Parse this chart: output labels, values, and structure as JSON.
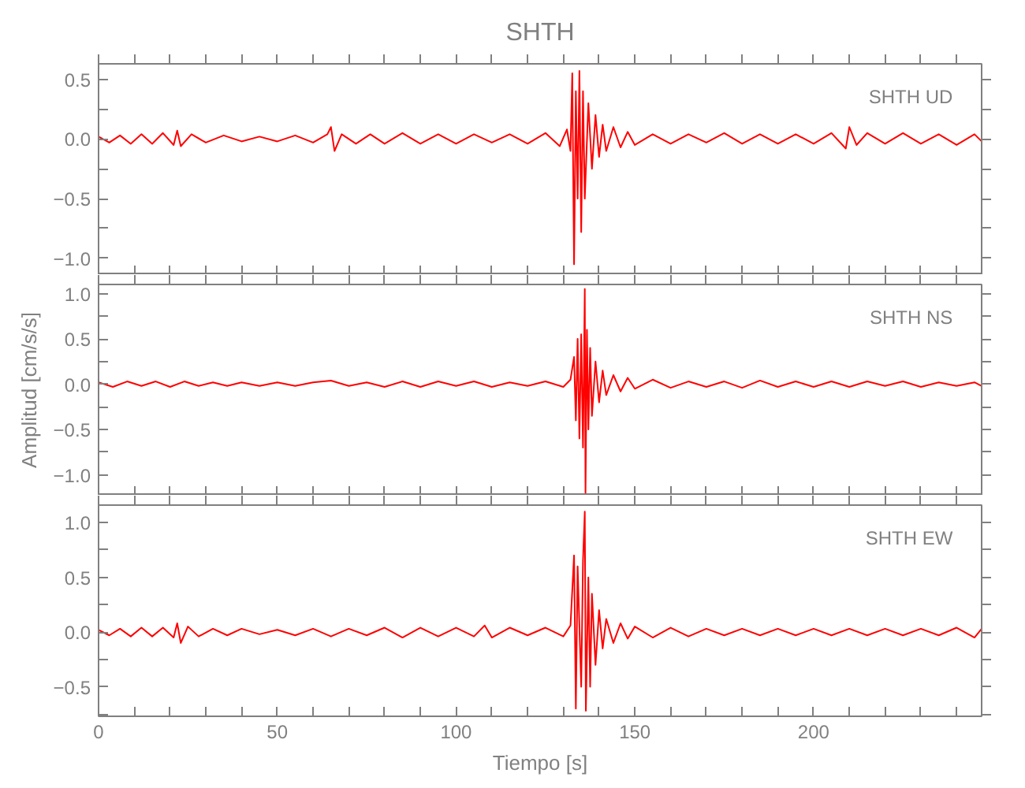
{
  "chart_data": [
    {
      "type": "line",
      "title": "SHTH",
      "annotations": [
        "SHTH  UD"
      ],
      "tick_labels": "y",
      "xlim": [
        0,
        247
      ],
      "ylim": [
        -1.14,
        0.63
      ],
      "xticks": [
        {
          "value": 0,
          "label": null
        },
        {
          "value": 10,
          "label": null
        },
        {
          "value": 20,
          "label": null
        },
        {
          "value": 30,
          "label": null
        },
        {
          "value": 40,
          "label": null
        },
        {
          "value": 50,
          "label": null
        },
        {
          "value": 60,
          "label": null
        },
        {
          "value": 70,
          "label": null
        },
        {
          "value": 80,
          "label": null
        },
        {
          "value": 90,
          "label": null
        },
        {
          "value": 100,
          "label": null
        },
        {
          "value": 110,
          "label": null
        },
        {
          "value": 120,
          "label": null
        },
        {
          "value": 130,
          "label": null
        },
        {
          "value": 140,
          "label": null
        },
        {
          "value": 150,
          "label": null
        },
        {
          "value": 160,
          "label": null
        },
        {
          "value": 170,
          "label": null
        },
        {
          "value": 180,
          "label": null
        },
        {
          "value": 190,
          "label": null
        },
        {
          "value": 200,
          "label": null
        },
        {
          "value": 210,
          "label": null
        },
        {
          "value": 220,
          "label": null
        },
        {
          "value": 230,
          "label": null
        },
        {
          "value": 240,
          "label": null
        }
      ],
      "yticks": [
        {
          "value": 0.5,
          "label": "0.5"
        },
        {
          "value": 0.25,
          "label": null
        },
        {
          "value": 0,
          "label": "0.0"
        },
        {
          "value": -0.25,
          "label": null
        },
        {
          "value": -0.5,
          "label": "−0.5"
        },
        {
          "value": -0.75,
          "label": null
        },
        {
          "value": -1.0,
          "label": "−1.0"
        }
      ],
      "series": [
        {
          "color": "#ff0000",
          "x": [
            0,
            3,
            6,
            9,
            12,
            15,
            18,
            21,
            22,
            23,
            26,
            30,
            35,
            40,
            45,
            50,
            55,
            60,
            64,
            65,
            66,
            68,
            72,
            76,
            80,
            85,
            90,
            95,
            100,
            105,
            110,
            115,
            120,
            125,
            129,
            131,
            132,
            132.5,
            133,
            133.5,
            134,
            134.5,
            135,
            135.5,
            136,
            137,
            138,
            139,
            140,
            141,
            142,
            144,
            146,
            148,
            150,
            155,
            160,
            165,
            170,
            175,
            180,
            185,
            190,
            195,
            200,
            205,
            209,
            210,
            212,
            215,
            220,
            225,
            230,
            235,
            240,
            245,
            247
          ],
          "values": [
            0.02,
            -0.03,
            0.03,
            -0.04,
            0.04,
            -0.04,
            0.05,
            -0.05,
            0.07,
            -0.06,
            0.04,
            -0.03,
            0.03,
            -0.02,
            0.02,
            -0.02,
            0.03,
            -0.03,
            0.04,
            0.1,
            -0.1,
            0.04,
            -0.04,
            0.04,
            -0.04,
            0.05,
            -0.04,
            0.04,
            -0.04,
            0.04,
            -0.03,
            0.04,
            -0.04,
            0.05,
            -0.06,
            0.08,
            -0.1,
            0.55,
            -1.05,
            0.4,
            -0.5,
            0.57,
            -0.78,
            0.4,
            -0.5,
            0.3,
            -0.25,
            0.2,
            -0.15,
            0.12,
            -0.1,
            0.1,
            -0.07,
            0.06,
            -0.05,
            0.04,
            -0.04,
            0.04,
            -0.03,
            0.05,
            -0.04,
            0.04,
            -0.04,
            0.04,
            -0.04,
            0.05,
            -0.08,
            0.1,
            -0.05,
            0.05,
            -0.04,
            0.05,
            -0.04,
            0.04,
            -0.05,
            0.04,
            -0.02
          ]
        }
      ]
    },
    {
      "type": "line",
      "ylabel": "Amplitud [cm/s/s]",
      "annotations": [
        "SHTH  NS"
      ],
      "tick_labels": "y",
      "xlim": [
        0,
        247
      ],
      "ylim": [
        -1.23,
        1.1
      ],
      "xticks": [
        {
          "value": 0,
          "label": null
        },
        {
          "value": 10,
          "label": null
        },
        {
          "value": 20,
          "label": null
        },
        {
          "value": 30,
          "label": null
        },
        {
          "value": 40,
          "label": null
        },
        {
          "value": 50,
          "label": null
        },
        {
          "value": 60,
          "label": null
        },
        {
          "value": 70,
          "label": null
        },
        {
          "value": 80,
          "label": null
        },
        {
          "value": 90,
          "label": null
        },
        {
          "value": 100,
          "label": null
        },
        {
          "value": 110,
          "label": null
        },
        {
          "value": 120,
          "label": null
        },
        {
          "value": 130,
          "label": null
        },
        {
          "value": 140,
          "label": null
        },
        {
          "value": 150,
          "label": null
        },
        {
          "value": 160,
          "label": null
        },
        {
          "value": 170,
          "label": null
        },
        {
          "value": 180,
          "label": null
        },
        {
          "value": 190,
          "label": null
        },
        {
          "value": 200,
          "label": null
        },
        {
          "value": 210,
          "label": null
        },
        {
          "value": 220,
          "label": null
        },
        {
          "value": 230,
          "label": null
        },
        {
          "value": 240,
          "label": null
        }
      ],
      "yticks": [
        {
          "value": 1.0,
          "label": "1.0"
        },
        {
          "value": 0.75,
          "label": null
        },
        {
          "value": 0.5,
          "label": "0.5"
        },
        {
          "value": 0.25,
          "label": null
        },
        {
          "value": 0,
          "label": "0.0"
        },
        {
          "value": -0.25,
          "label": null
        },
        {
          "value": -0.5,
          "label": "−0.5"
        },
        {
          "value": -0.75,
          "label": null
        },
        {
          "value": -1.0,
          "label": "−1.0"
        }
      ],
      "series": [
        {
          "color": "#ff0000",
          "x": [
            0,
            4,
            8,
            12,
            16,
            20,
            24,
            28,
            32,
            36,
            40,
            45,
            50,
            55,
            60,
            65,
            70,
            75,
            80,
            85,
            90,
            95,
            100,
            105,
            110,
            115,
            120,
            125,
            130,
            132,
            133,
            133.5,
            134,
            134.5,
            135,
            135.5,
            136,
            136.2,
            136.6,
            137,
            137.5,
            138,
            139,
            140,
            141,
            142,
            144,
            146,
            148,
            150,
            155,
            160,
            165,
            170,
            175,
            180,
            185,
            190,
            195,
            200,
            205,
            210,
            215,
            220,
            225,
            230,
            235,
            240,
            245,
            247
          ],
          "values": [
            0.02,
            -0.03,
            0.03,
            -0.02,
            0.03,
            -0.03,
            0.03,
            -0.02,
            0.02,
            -0.02,
            0.02,
            -0.02,
            0.02,
            -0.02,
            0.02,
            0.04,
            -0.02,
            0.02,
            -0.03,
            0.03,
            -0.03,
            0.03,
            -0.02,
            0.03,
            -0.03,
            0.02,
            -0.02,
            0.03,
            -0.03,
            0.05,
            0.3,
            -0.4,
            0.5,
            -0.6,
            0.55,
            -0.7,
            1.05,
            -1.2,
            0.6,
            -0.5,
            0.4,
            -0.35,
            0.25,
            -0.2,
            0.15,
            -0.12,
            0.1,
            -0.08,
            0.07,
            -0.05,
            0.05,
            -0.04,
            0.03,
            -0.03,
            0.03,
            -0.04,
            0.04,
            -0.03,
            0.03,
            -0.03,
            0.03,
            -0.03,
            0.03,
            -0.02,
            0.03,
            -0.03,
            0.02,
            -0.02,
            0.02,
            -0.02
          ]
        }
      ]
    },
    {
      "type": "line",
      "xlabel": "Tiempo [s]",
      "annotations": [
        "SHTH  EW"
      ],
      "xlim": [
        0,
        247
      ],
      "ylim": [
        -0.77,
        1.16
      ],
      "xticks": [
        {
          "value": 0,
          "label": "0"
        },
        {
          "value": 10,
          "label": null
        },
        {
          "value": 20,
          "label": null
        },
        {
          "value": 30,
          "label": null
        },
        {
          "value": 40,
          "label": null
        },
        {
          "value": 50,
          "label": "50"
        },
        {
          "value": 60,
          "label": null
        },
        {
          "value": 70,
          "label": null
        },
        {
          "value": 80,
          "label": null
        },
        {
          "value": 90,
          "label": null
        },
        {
          "value": 100,
          "label": "100"
        },
        {
          "value": 110,
          "label": null
        },
        {
          "value": 120,
          "label": null
        },
        {
          "value": 130,
          "label": null
        },
        {
          "value": 140,
          "label": null
        },
        {
          "value": 150,
          "label": "150"
        },
        {
          "value": 160,
          "label": null
        },
        {
          "value": 170,
          "label": null
        },
        {
          "value": 180,
          "label": null
        },
        {
          "value": 190,
          "label": null
        },
        {
          "value": 200,
          "label": "200"
        },
        {
          "value": 210,
          "label": null
        },
        {
          "value": 220,
          "label": null
        },
        {
          "value": 230,
          "label": null
        },
        {
          "value": 240,
          "label": null
        }
      ],
      "yticks": [
        {
          "value": 1.0,
          "label": "1.0"
        },
        {
          "value": 0.75,
          "label": null
        },
        {
          "value": 0.5,
          "label": "0.5"
        },
        {
          "value": 0.25,
          "label": null
        },
        {
          "value": 0,
          "label": "0.0"
        },
        {
          "value": -0.25,
          "label": null
        },
        {
          "value": -0.5,
          "label": "−0.5"
        },
        {
          "value": -0.75,
          "label": null
        }
      ],
      "series": [
        {
          "color": "#ff0000",
          "x": [
            0,
            3,
            6,
            9,
            12,
            15,
            18,
            21,
            22,
            23,
            25,
            28,
            32,
            36,
            40,
            45,
            50,
            55,
            60,
            65,
            70,
            75,
            80,
            85,
            90,
            95,
            100,
            105,
            108,
            110,
            115,
            120,
            125,
            130,
            132,
            133,
            133.5,
            134,
            135,
            135.5,
            136,
            136.3,
            137,
            137.5,
            138,
            139,
            140,
            141,
            142,
            144,
            146,
            148,
            150,
            155,
            160,
            165,
            170,
            175,
            180,
            185,
            190,
            195,
            200,
            205,
            210,
            215,
            220,
            225,
            230,
            235,
            240,
            245,
            247
          ],
          "values": [
            0.02,
            -0.03,
            0.03,
            -0.04,
            0.04,
            -0.04,
            0.04,
            -0.05,
            0.08,
            -0.1,
            0.05,
            -0.04,
            0.03,
            -0.03,
            0.03,
            -0.02,
            0.02,
            -0.03,
            0.03,
            -0.04,
            0.03,
            -0.03,
            0.04,
            -0.05,
            0.04,
            -0.04,
            0.04,
            -0.04,
            0.06,
            -0.05,
            0.04,
            -0.03,
            0.04,
            -0.04,
            0.06,
            0.7,
            -0.7,
            0.6,
            -0.5,
            0.65,
            1.1,
            -0.72,
            0.5,
            -0.5,
            0.35,
            -0.3,
            0.2,
            -0.15,
            0.12,
            -0.1,
            0.08,
            -0.06,
            0.05,
            -0.05,
            0.04,
            -0.04,
            0.03,
            -0.03,
            0.03,
            -0.03,
            0.03,
            -0.03,
            0.03,
            -0.03,
            0.03,
            -0.03,
            0.03,
            -0.03,
            0.03,
            -0.03,
            0.04,
            -0.05,
            0.03
          ]
        }
      ]
    }
  ]
}
